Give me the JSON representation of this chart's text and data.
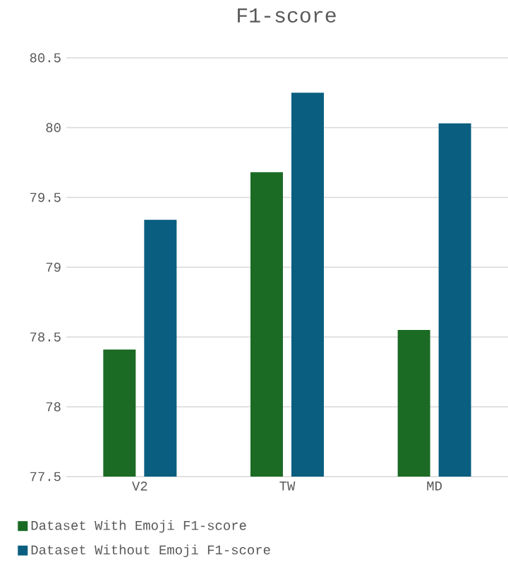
{
  "chart_data": {
    "type": "bar",
    "title": "F1-score",
    "categories": [
      "V2",
      "TW",
      "MD"
    ],
    "series": [
      {
        "name": "Dataset With Emoji F1-score",
        "color": "#1b6b24",
        "values": [
          78.41,
          79.68,
          78.55
        ]
      },
      {
        "name": "Dataset Without Emoji F1-score",
        "color": "#0a5e80",
        "values": [
          79.34,
          80.25,
          80.03
        ]
      }
    ],
    "ylim": [
      77.5,
      80.5
    ],
    "yticks": [
      77.5,
      78,
      78.5,
      79,
      79.5,
      80,
      80.5
    ],
    "grid": "y",
    "legend": "bottom"
  }
}
